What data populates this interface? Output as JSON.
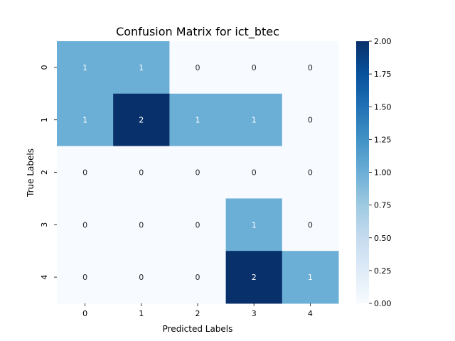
{
  "chart_data": {
    "type": "heatmap",
    "title": "Confusion Matrix for ict_btec",
    "xlabel": "Predicted Labels",
    "ylabel": "True Labels",
    "x_categories": [
      "0",
      "1",
      "2",
      "3",
      "4"
    ],
    "y_categories": [
      "0",
      "1",
      "2",
      "3",
      "4"
    ],
    "values": [
      [
        1,
        1,
        0,
        0,
        0
      ],
      [
        1,
        2,
        1,
        1,
        0
      ],
      [
        0,
        0,
        0,
        0,
        0
      ],
      [
        0,
        0,
        0,
        1,
        0
      ],
      [
        0,
        0,
        0,
        2,
        1
      ]
    ],
    "value_labels": [
      [
        "1",
        "1",
        "0",
        "0",
        "0"
      ],
      [
        "1",
        "2",
        "1",
        "1",
        "0"
      ],
      [
        "0",
        "0",
        "0",
        "0",
        "0"
      ],
      [
        "0",
        "0",
        "0",
        "1",
        "0"
      ],
      [
        "0",
        "0",
        "0",
        "2",
        "1"
      ]
    ],
    "colormap": "Blues",
    "colorbar": {
      "range": [
        0,
        2
      ],
      "ticks": [
        "0.00",
        "0.25",
        "0.50",
        "0.75",
        "1.00",
        "1.25",
        "1.50",
        "1.75",
        "2.00"
      ],
      "tick_values": [
        0,
        0.25,
        0.5,
        0.75,
        1.0,
        1.25,
        1.5,
        1.75,
        2.0
      ]
    },
    "colors": {
      "low": "#f7fbff",
      "mid": "#6baed6",
      "high": "#08306b",
      "text_dark": "#262626",
      "text_light": "#ffffff"
    }
  }
}
